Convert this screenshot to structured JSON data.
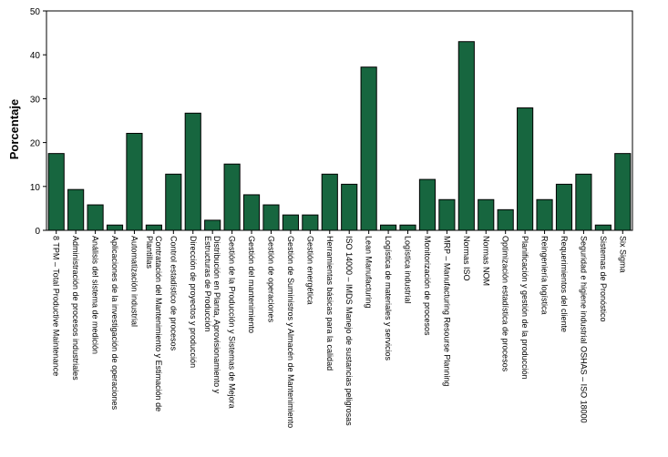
{
  "chart_data": {
    "type": "bar",
    "title": "",
    "xlabel": "",
    "ylabel": "Porcentaje",
    "ylim": [
      0,
      50
    ],
    "yticks": [
      0,
      10,
      20,
      30,
      40,
      50
    ],
    "grid": false,
    "bar_color": "#17663f",
    "bar_edge_color": "#000000",
    "categories": [
      [
        "8 TPM – Total Productive Maintenance"
      ],
      [
        "Administración de procesos industriales"
      ],
      [
        "Análisis del sistema de medición"
      ],
      [
        "Aplicaciones de la investigación de operaciones"
      ],
      [
        "Automatización industrial"
      ],
      [
        "Contratación del Mantenimiento y Estimación de",
        "Plantillas"
      ],
      [
        "Control estadístico de procesos"
      ],
      [
        "Dirección de proyectos y producción"
      ],
      [
        "Distribución en Planta, Aprovisionamiento y",
        "Estructuras de Producción"
      ],
      [
        "Gestión de la Producción y Sistemas de Mejora"
      ],
      [
        "Gestión del mantenimiento"
      ],
      [
        "Gestión de operaciones"
      ],
      [
        "Gestión de Suministros y Almacén de Mantenimiento"
      ],
      [
        "Gestión energética"
      ],
      [
        "Herramientas básicas para la calidad"
      ],
      [
        "ISO 14000 – IMDS Manejo de sustancias peligrosas"
      ],
      [
        "Lean Manufacturing"
      ],
      [
        "Logística de materiales y servicios"
      ],
      [
        "Logística industrial"
      ],
      [
        "Monitorización de procesos"
      ],
      [
        "MRP – Manufacturing Resourse Planning"
      ],
      [
        "Normas ISO"
      ],
      [
        "Normas NOM"
      ],
      [
        "Optimización estadística de procesos"
      ],
      [
        "Planificación y gestión de la producción"
      ],
      [
        "Reingeniería logística"
      ],
      [
        "Requerimientos del cliente"
      ],
      [
        "Seguridad e higiene industrial OSHAS – ISO 18000"
      ],
      [
        "Sistemas de Pronóstico"
      ],
      [
        "Six Sigma"
      ]
    ],
    "values": [
      17.5,
      9.3,
      5.8,
      1.2,
      22.1,
      1.2,
      12.8,
      26.7,
      2.3,
      15.1,
      8.1,
      5.8,
      3.5,
      3.5,
      12.8,
      10.5,
      37.2,
      1.2,
      1.2,
      11.6,
      7.0,
      43.0,
      7.0,
      4.7,
      27.9,
      7.0,
      10.5,
      12.8,
      1.2,
      17.5
    ]
  }
}
